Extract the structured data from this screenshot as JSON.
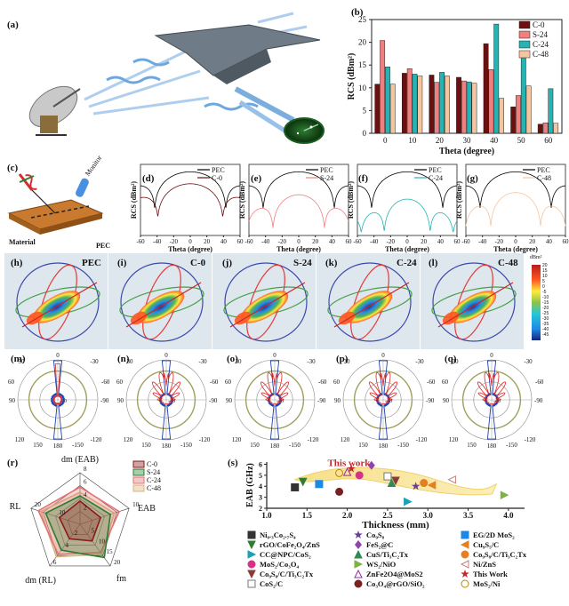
{
  "figure": {
    "panel_labels": {
      "a": "(a)",
      "b": "(b)",
      "c": "(c)",
      "d": "(d)",
      "e": "(e)",
      "f": "(f)",
      "g": "(g)",
      "h": "(h)",
      "i": "(i)",
      "j": "(j)",
      "k": "(k)",
      "l": "(l)",
      "m": "(m)",
      "n": "(n)",
      "o": "(o)",
      "p": "(p)",
      "q": "(q)",
      "r": "(r)",
      "s": "(s)"
    },
    "schematic_c": {
      "monitor": "Monitor",
      "material": "Material",
      "pec": "PEC"
    },
    "sim_3d": {
      "titles": [
        "PEC",
        "C-0",
        "S-24",
        "C-24",
        "C-48"
      ],
      "colorbar_title": "dBm²",
      "colorbar_ticks": [
        "20",
        "15",
        "10",
        "5",
        "0",
        "-5",
        "-10",
        "-15",
        "-20",
        "-25",
        "-30",
        "-35",
        "-40",
        "-45"
      ]
    },
    "polar": {
      "ticks_top": [
        "0",
        "30",
        "-30"
      ],
      "ticks_side": [
        "60",
        "90",
        "-90",
        "-60"
      ],
      "ticks_bottom": [
        "120",
        "150",
        "180",
        "-150",
        "-120"
      ],
      "ring_labels": [
        "-40",
        "-20",
        "0"
      ]
    },
    "colors": {
      "C-0": "#6b0f0f",
      "S-24": "#f08080",
      "C-24": "#26b3b3",
      "C-48": "#f4c6a0",
      "PEC": "#000000"
    }
  },
  "chart_data": [
    {
      "id": "b",
      "type": "bar",
      "title": "",
      "xlabel": "Theta (degree)",
      "ylabel": "RCS (dBm²)",
      "categories": [
        "0",
        "10",
        "20",
        "30",
        "40",
        "50",
        "60"
      ],
      "ylim": [
        0,
        25
      ],
      "yticks": [
        "0",
        "5",
        "10",
        "15",
        "20",
        "25"
      ],
      "legend_position": "top-right",
      "series": [
        {
          "name": "C-0",
          "values": [
            10.8,
            13.2,
            12.8,
            12.3,
            19.7,
            5.8,
            2.0
          ]
        },
        {
          "name": "S-24",
          "values": [
            20.4,
            14.2,
            11.2,
            11.5,
            14.0,
            8.3,
            2.3
          ]
        },
        {
          "name": "C-24",
          "values": [
            14.6,
            13.0,
            13.4,
            11.3,
            24.0,
            17.0,
            9.8
          ]
        },
        {
          "name": "C-48",
          "values": [
            10.8,
            12.6,
            12.6,
            11.0,
            7.7,
            10.4,
            2.2
          ]
        }
      ]
    },
    {
      "id": "d",
      "type": "line",
      "xlabel": "Theta (degree)",
      "ylabel": "RCS (dBm²)",
      "xticks": [
        "-60",
        "-40",
        "-20",
        "0",
        "20",
        "40",
        "60"
      ],
      "xlim": [
        -60,
        60
      ],
      "legend_position": "top-right",
      "series": [
        {
          "name": "PEC"
        },
        {
          "name": "C-0"
        }
      ]
    },
    {
      "id": "e",
      "type": "line",
      "xlabel": "Theta (degree)",
      "ylabel": "RCS (dBm²)",
      "xticks": [
        "-60",
        "-40",
        "-20",
        "0",
        "20",
        "40",
        "60"
      ],
      "xlim": [
        -60,
        60
      ],
      "legend_position": "top-right",
      "series": [
        {
          "name": "PEC"
        },
        {
          "name": "S-24"
        }
      ]
    },
    {
      "id": "f",
      "type": "line",
      "xlabel": "Theta (degree)",
      "ylabel": "RCS (dBm²)",
      "xticks": [
        "-60",
        "-40",
        "-20",
        "0",
        "20",
        "40",
        "60"
      ],
      "xlim": [
        -60,
        60
      ],
      "legend_position": "top-right",
      "series": [
        {
          "name": "PEC"
        },
        {
          "name": "C-24"
        }
      ]
    },
    {
      "id": "g",
      "type": "line",
      "xlabel": "Theta (degree)",
      "ylabel": "RCS (dBm²)",
      "xticks": [
        "-60",
        "-40",
        "-20",
        "0",
        "20",
        "40",
        "60"
      ],
      "xlim": [
        -60,
        60
      ],
      "legend_position": "top-right",
      "series": [
        {
          "name": "PEC"
        },
        {
          "name": "C-48"
        }
      ]
    },
    {
      "id": "r",
      "type": "radar",
      "axes": [
        "dm (EAB)",
        "EAB",
        "fm",
        "dm (RL)",
        "RL"
      ],
      "tick_labels": [
        "2",
        "4",
        "6",
        "8",
        "10",
        "5",
        "10",
        "15",
        "20",
        "10",
        "20",
        "6",
        "4",
        "2"
      ],
      "legend_position": "top-right",
      "series": [
        {
          "name": "C-0",
          "values": [
            0.45,
            0.42,
            0.4,
            0.35,
            0.42
          ]
        },
        {
          "name": "S-24",
          "values": [
            0.55,
            0.62,
            0.8,
            0.62,
            0.7
          ]
        },
        {
          "name": "C-24",
          "values": [
            0.72,
            0.8,
            0.68,
            0.72,
            0.85
          ]
        },
        {
          "name": "C-48",
          "values": [
            0.62,
            0.7,
            0.72,
            0.78,
            0.8
          ]
        }
      ]
    },
    {
      "id": "s",
      "type": "scatter",
      "xlabel": "Thickness (mm)",
      "ylabel": "EAB (GHz)",
      "xlim": [
        1.0,
        4.2
      ],
      "ylim": [
        2,
        6.2
      ],
      "xticks": [
        "1.0",
        "1.5",
        "2.0",
        "2.5",
        "3.0",
        "3.5",
        "4.0"
      ],
      "yticks": [
        "2",
        "3",
        "4",
        "5",
        "6"
      ],
      "annotation": "This work",
      "points": [
        {
          "name": "Ni0.3Co2.7S4",
          "x": 1.35,
          "y": 3.9,
          "symbol": "square",
          "color": "#333333"
        },
        {
          "name": "rGO/CoFe2O4/ZnS",
          "x": 1.45,
          "y": 4.4,
          "symbol": "triangle-down",
          "color": "#2e7d32"
        },
        {
          "name": "CC@NPC/CoS2",
          "x": 2.75,
          "y": 2.6,
          "symbol": "triangle-right",
          "color": "#17a2b8"
        },
        {
          "name": "MoS2/Co3O4",
          "x": 2.15,
          "y": 5.0,
          "symbol": "circle",
          "color": "#d63384"
        },
        {
          "name": "Co9S8/C/Ti3C2Tx",
          "x": 2.6,
          "y": 4.5,
          "symbol": "triangle-down",
          "color": "#8b3a3a"
        },
        {
          "name": "CoS2/C",
          "x": 2.5,
          "y": 4.9,
          "symbol": "square-open",
          "color": "#777777"
        },
        {
          "name": "Co9S8",
          "x": 2.85,
          "y": 4.0,
          "symbol": "star",
          "color": "#6a3d9a"
        },
        {
          "name": "FeS2@C",
          "x": 2.3,
          "y": 5.9,
          "symbol": "diamond",
          "color": "#8e44ad"
        },
        {
          "name": "CuS/Ti3C2Tx",
          "x": 2.55,
          "y": 4.3,
          "symbol": "triangle-up",
          "color": "#2e8b57"
        },
        {
          "name": "WS2/NiO",
          "x": 3.95,
          "y": 3.2,
          "symbol": "triangle-right",
          "color": "#7cb342"
        },
        {
          "name": "ZnFe2O4@MoS2",
          "x": 2.0,
          "y": 5.3,
          "symbol": "triangle-up-open",
          "color": "#9c27b0"
        },
        {
          "name": "Co3O4@rGO/SiO2",
          "x": 1.9,
          "y": 3.5,
          "symbol": "circle",
          "color": "#7b1f1f"
        },
        {
          "name": "EG/2D MoS2",
          "x": 1.65,
          "y": 4.2,
          "symbol": "square",
          "color": "#1e88e5"
        },
        {
          "name": "Cu9S5/C",
          "x": 3.05,
          "y": 4.1,
          "symbol": "triangle-left",
          "color": "#e67e22"
        },
        {
          "name": "Co9S8/C/Ti3C2Tx",
          "x": 2.95,
          "y": 4.3,
          "symbol": "circle",
          "color": "#e67e22"
        },
        {
          "name": "Ni/ZnS",
          "x": 3.3,
          "y": 4.6,
          "symbol": "triangle-left-open",
          "color": "#c08080"
        },
        {
          "name": "This Work",
          "x": 2.05,
          "y": 5.6,
          "symbol": "star",
          "color": "#c62828"
        },
        {
          "name": "MoS2/Ni",
          "x": 1.9,
          "y": 5.2,
          "symbol": "circle-open",
          "color": "#b8860b"
        }
      ],
      "legend": [
        [
          "Ni₀.₃Co₂.₇S₄",
          "Co₉S₈",
          "EG/2D MoS₂"
        ],
        [
          "rGO/CoFe₂O₄/ZnS",
          "FeS₂@C",
          "Cu₉S₅/C"
        ],
        [
          "CC@NPC/CoS₂",
          "CuS/Ti₃C₂Tx",
          "Co₉S₈/C/Ti₃C₂Tx"
        ],
        [
          "MoS₂/Co₃O₄",
          "WS₂/NiO",
          "Ni/ZnS"
        ],
        [
          "Co₉S₈/C/Ti₃C₂Tx",
          "ZnFe2O4@MoS2",
          "This Work"
        ],
        [
          "CoS₂/C",
          "Co₃O₄@rGO/SiO₂",
          "MoS₂/Ni"
        ]
      ]
    }
  ]
}
